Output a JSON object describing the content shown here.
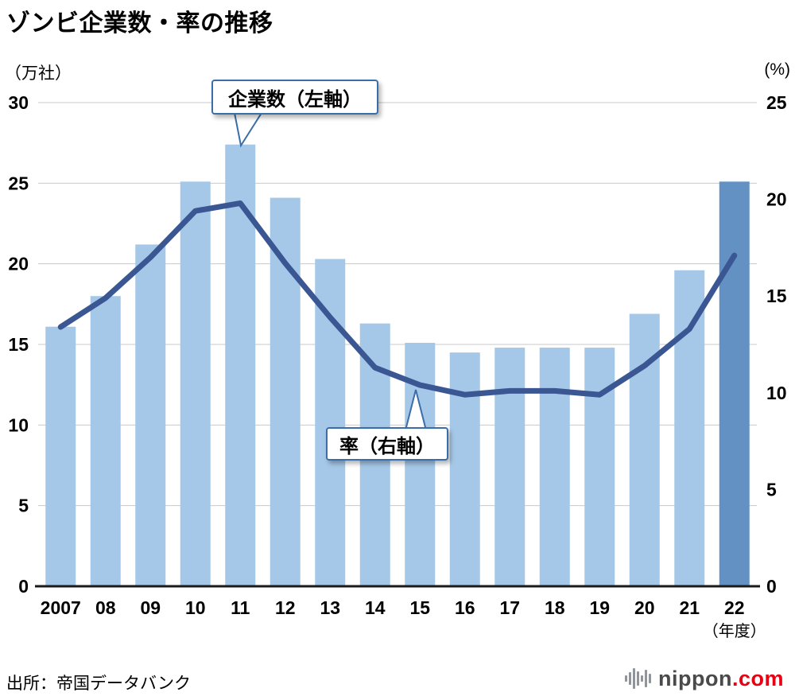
{
  "page_title": "ゾンビ企業数・率の推移",
  "axes_units": {
    "left": "（万社）",
    "right": "(%)"
  },
  "x_axis_suffix": "（年度）",
  "annotations": {
    "bars_callout": "企業数（左軸）",
    "line_callout": "率（右軸）"
  },
  "source": "出所：帝国データバンク",
  "logo": {
    "name": "nippon.com",
    "main": "nippon",
    "suffix": ".com",
    "icon": "soundwave-icon",
    "main_color": "#4a4a4a",
    "suffix_color": "#e60012"
  },
  "chart_data": {
    "type": "bar",
    "title": "ゾンビ企業数・率の推移",
    "categories": [
      "2007",
      "08",
      "09",
      "10",
      "11",
      "12",
      "13",
      "14",
      "15",
      "16",
      "17",
      "18",
      "19",
      "20",
      "21",
      "22"
    ],
    "series": [
      {
        "name": "企業数（左軸）",
        "type": "bar",
        "axis": "left",
        "values": [
          16.1,
          18.0,
          21.2,
          25.1,
          27.4,
          24.1,
          20.3,
          16.3,
          15.1,
          14.5,
          14.8,
          14.8,
          14.8,
          16.9,
          19.6,
          25.1
        ],
        "highlight_index": 15
      },
      {
        "name": "率（右軸）",
        "type": "line",
        "axis": "right",
        "values": [
          13.4,
          14.9,
          17.0,
          19.4,
          19.8,
          16.7,
          13.9,
          11.3,
          10.4,
          9.9,
          10.1,
          10.1,
          9.9,
          11.4,
          13.3,
          17.1
        ]
      }
    ],
    "left_axis": {
      "label": "（万社）",
      "min": 0,
      "max": 30,
      "step": 5
    },
    "right_axis": {
      "label": "(%)",
      "min": 0,
      "max": 25,
      "step": 5
    },
    "grid": true,
    "legend": "callouts",
    "colors": {
      "bar": "#a6c8e8",
      "bar_highlight": "#6391c4",
      "line": "#3a5693",
      "grid": "#c9c9c9",
      "axis": "#1a1a1a",
      "callout_border": "#3a6ea8"
    }
  }
}
